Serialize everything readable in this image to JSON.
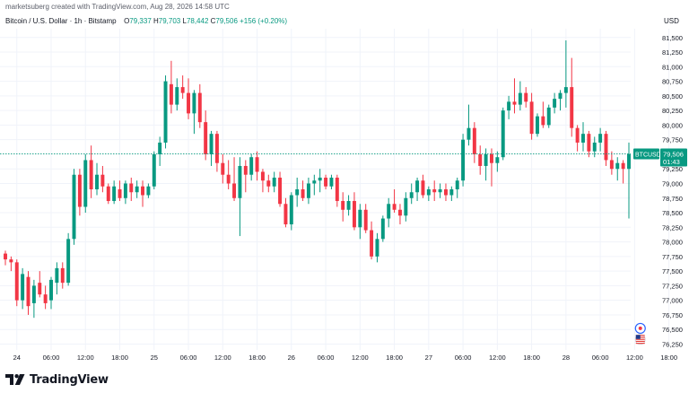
{
  "attribution": "marketsuberg created with TradingView.com, Aug 28, 2026 14:58 UTC",
  "header": {
    "symbol": "Bitcoin / U.S. Dollar · 1h · Bitstamp",
    "o_label": "O",
    "o_value": "79,337",
    "h_label": "H",
    "h_value": "79,703",
    "l_label": "L",
    "l_value": "78,442",
    "c_label": "C",
    "c_value": "79,506",
    "change": "+156 (+0.20%)"
  },
  "currency": "USD",
  "brand": {
    "name": "TradingView",
    "icon": "tradingview-logo-icon"
  },
  "colors": {
    "up": "#089981",
    "down": "#f23645",
    "grid": "#f0f3fa",
    "axis_text": "#131722",
    "price_line": "#089981"
  },
  "chart_data": {
    "type": "candlestick",
    "ylim": [
      76150,
      81650
    ],
    "y_ticks": [
      {
        "value": 81500,
        "label": "81,500"
      },
      {
        "value": 81250,
        "label": "81,250"
      },
      {
        "value": 81000,
        "label": "81,000"
      },
      {
        "value": 80750,
        "label": "80,750"
      },
      {
        "value": 80500,
        "label": "80,500"
      },
      {
        "value": 80250,
        "label": "80,250"
      },
      {
        "value": 80000,
        "label": "80,000"
      },
      {
        "value": 79750,
        "label": "79,750"
      },
      {
        "value": 79250,
        "label": "79,250"
      },
      {
        "value": 79000,
        "label": "79,000"
      },
      {
        "value": 78750,
        "label": "78,750"
      },
      {
        "value": 78500,
        "label": "78,500"
      },
      {
        "value": 78250,
        "label": "78,250"
      },
      {
        "value": 78000,
        "label": "78,000"
      },
      {
        "value": 77750,
        "label": "77,750"
      },
      {
        "value": 77500,
        "label": "77,500"
      },
      {
        "value": 77250,
        "label": "77,250"
      },
      {
        "value": 77000,
        "label": "77,000"
      },
      {
        "value": 76750,
        "label": "76,750"
      },
      {
        "value": 76500,
        "label": "76,500"
      },
      {
        "value": 76250,
        "label": "76,250"
      }
    ],
    "x_ticks": [
      {
        "index": 2,
        "label": "24"
      },
      {
        "index": 8,
        "label": "06:00"
      },
      {
        "index": 14,
        "label": "12:00"
      },
      {
        "index": 20,
        "label": "18:00"
      },
      {
        "index": 26,
        "label": "25"
      },
      {
        "index": 32,
        "label": "06:00"
      },
      {
        "index": 38,
        "label": "12:00"
      },
      {
        "index": 44,
        "label": "18:00"
      },
      {
        "index": 50,
        "label": "26"
      },
      {
        "index": 56,
        "label": "06:00"
      },
      {
        "index": 62,
        "label": "12:00"
      },
      {
        "index": 68,
        "label": "18:00"
      },
      {
        "index": 74,
        "label": "27"
      },
      {
        "index": 80,
        "label": "06:00"
      },
      {
        "index": 86,
        "label": "12:00"
      },
      {
        "index": 92,
        "label": "18:00"
      },
      {
        "index": 98,
        "label": "28"
      },
      {
        "index": 104,
        "label": "06:00"
      },
      {
        "index": 110,
        "label": "12:00"
      },
      {
        "index": 116,
        "label": "18:00"
      }
    ],
    "candles": [
      [
        77800,
        77850,
        77600,
        77700
      ],
      [
        77700,
        77750,
        77500,
        77650
      ],
      [
        77650,
        77700,
        76900,
        77000
      ],
      [
        77000,
        77550,
        76850,
        77450
      ],
      [
        77400,
        77500,
        76750,
        76900
      ],
      [
        76950,
        77350,
        76700,
        77250
      ],
      [
        77300,
        77500,
        77050,
        77100
      ],
      [
        77100,
        77250,
        76850,
        76950
      ],
      [
        77000,
        77400,
        76850,
        77350
      ],
      [
        77300,
        77650,
        77100,
        77550
      ],
      [
        77550,
        77650,
        77200,
        77300
      ],
      [
        77300,
        78150,
        77250,
        78050
      ],
      [
        78050,
        79250,
        77950,
        79150
      ],
      [
        79150,
        79250,
        78450,
        78600
      ],
      [
        78600,
        79500,
        78500,
        79400
      ],
      [
        79400,
        79650,
        78750,
        78900
      ],
      [
        78900,
        79350,
        78800,
        79150
      ],
      [
        79150,
        79300,
        78850,
        78950
      ],
      [
        78950,
        79000,
        78650,
        78700
      ],
      [
        78700,
        79050,
        78650,
        78950
      ],
      [
        78900,
        79050,
        78700,
        78750
      ],
      [
        78750,
        79050,
        78650,
        79000
      ],
      [
        79000,
        79100,
        78700,
        78850
      ],
      [
        78850,
        79050,
        78750,
        78950
      ],
      [
        78950,
        79050,
        78600,
        78800
      ],
      [
        78800,
        79000,
        78750,
        78950
      ],
      [
        78950,
        79550,
        78900,
        79500
      ],
      [
        79500,
        79800,
        79300,
        79700
      ],
      [
        79700,
        80850,
        79600,
        80750
      ],
      [
        80700,
        81100,
        80200,
        80350
      ],
      [
        80350,
        80800,
        80250,
        80650
      ],
      [
        80650,
        80850,
        80450,
        80550
      ],
      [
        80550,
        80800,
        80100,
        80200
      ],
      [
        80200,
        80600,
        79850,
        80550
      ],
      [
        80550,
        80700,
        79950,
        80050
      ],
      [
        80050,
        80250,
        79400,
        79500
      ],
      [
        79500,
        79900,
        79300,
        79850
      ],
      [
        79850,
        79900,
        79200,
        79350
      ],
      [
        79350,
        79500,
        79000,
        79150
      ],
      [
        79150,
        79400,
        78900,
        79000
      ],
      [
        79000,
        79450,
        78700,
        78750
      ],
      [
        78750,
        79450,
        78100,
        79300
      ],
      [
        79300,
        79400,
        78850,
        79150
      ],
      [
        79150,
        79500,
        79050,
        79450
      ],
      [
        79450,
        79550,
        79050,
        79200
      ],
      [
        79200,
        79250,
        78850,
        79050
      ],
      [
        79050,
        79150,
        78850,
        78950
      ],
      [
        78950,
        79200,
        78850,
        79100
      ],
      [
        79100,
        79200,
        78600,
        78650
      ],
      [
        78650,
        78750,
        78250,
        78300
      ],
      [
        78300,
        78850,
        78200,
        78800
      ],
      [
        78800,
        79100,
        78600,
        78900
      ],
      [
        78900,
        79050,
        78700,
        78750
      ],
      [
        78750,
        79100,
        78650,
        79000
      ],
      [
        79000,
        79150,
        78800,
        79050
      ],
      [
        79050,
        79250,
        78850,
        79100
      ],
      [
        79100,
        79150,
        78900,
        78950
      ],
      [
        78950,
        79150,
        78900,
        79100
      ],
      [
        79100,
        79150,
        78600,
        78700
      ],
      [
        78700,
        78850,
        78350,
        78550
      ],
      [
        78550,
        78800,
        78450,
        78700
      ],
      [
        78700,
        78850,
        78200,
        78250
      ],
      [
        78250,
        78650,
        78050,
        78550
      ],
      [
        78550,
        78650,
        78150,
        78200
      ],
      [
        78200,
        78350,
        77700,
        77750
      ],
      [
        77750,
        78150,
        77650,
        78050
      ],
      [
        78050,
        78450,
        78000,
        78400
      ],
      [
        78400,
        78750,
        78250,
        78650
      ],
      [
        78650,
        78900,
        78500,
        78550
      ],
      [
        78550,
        78650,
        78300,
        78450
      ],
      [
        78450,
        78850,
        78350,
        78750
      ],
      [
        78750,
        79000,
        78650,
        78850
      ],
      [
        78850,
        79100,
        78700,
        79050
      ],
      [
        79050,
        79150,
        78750,
        78800
      ],
      [
        78800,
        78950,
        78700,
        78900
      ],
      [
        78900,
        79050,
        78700,
        78850
      ],
      [
        78850,
        79000,
        78750,
        78900
      ],
      [
        78900,
        79000,
        78700,
        78800
      ],
      [
        78800,
        78950,
        78700,
        78900
      ],
      [
        78900,
        79100,
        78750,
        79050
      ],
      [
        79050,
        79850,
        78950,
        79750
      ],
      [
        79750,
        80350,
        79650,
        79950
      ],
      [
        79950,
        80050,
        79350,
        79500
      ],
      [
        79500,
        79650,
        79150,
        79300
      ],
      [
        79300,
        79600,
        79050,
        79500
      ],
      [
        79500,
        79600,
        78950,
        79350
      ],
      [
        79350,
        79550,
        79200,
        79450
      ],
      [
        79450,
        80300,
        79400,
        80250
      ],
      [
        80250,
        80500,
        80100,
        80400
      ],
      [
        80400,
        80800,
        80200,
        80350
      ],
      [
        80350,
        80750,
        80250,
        80550
      ],
      [
        80550,
        80650,
        80300,
        80400
      ],
      [
        80400,
        80550,
        79750,
        79850
      ],
      [
        79850,
        80200,
        79800,
        80150
      ],
      [
        80150,
        80400,
        79950,
        80000
      ],
      [
        80000,
        80350,
        79950,
        80300
      ],
      [
        80300,
        80550,
        80200,
        80450
      ],
      [
        80450,
        80600,
        80250,
        80550
      ],
      [
        80550,
        81450,
        80300,
        80650
      ],
      [
        80650,
        81150,
        79800,
        79950
      ],
      [
        79950,
        80000,
        79550,
        79700
      ],
      [
        79700,
        80050,
        79550,
        79850
      ],
      [
        79850,
        79900,
        79450,
        79550
      ],
      [
        79550,
        79800,
        79450,
        79700
      ],
      [
        79700,
        79950,
        79550,
        79850
      ],
      [
        79850,
        79900,
        79300,
        79400
      ],
      [
        79400,
        79550,
        79150,
        79250
      ],
      [
        79250,
        79450,
        79050,
        79350
      ],
      [
        79350,
        79400,
        79000,
        79250
      ],
      [
        79250,
        79700,
        78400,
        79500
      ]
    ],
    "last_price": {
      "symbol": "BTCUSD",
      "price": 79506,
      "label": "79,506",
      "countdown": "01:43"
    },
    "grid": true,
    "markers": [
      {
        "name": "event-marker-icon",
        "index": 111,
        "price": 76520
      },
      {
        "name": "us-flag-icon",
        "index": 111,
        "price": 76330
      }
    ]
  }
}
